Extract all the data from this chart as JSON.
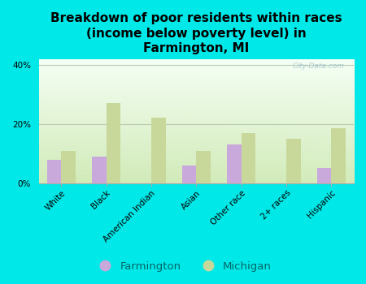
{
  "title": "Breakdown of poor residents within races\n(income below poverty level) in\nFarmington, MI",
  "categories": [
    "White",
    "Black",
    "American Indian",
    "Asian",
    "Other race",
    "2+ races",
    "Hispanic"
  ],
  "farmington_values": [
    8.0,
    9.0,
    0.0,
    6.0,
    13.0,
    0.0,
    5.0
  ],
  "michigan_values": [
    11.0,
    27.0,
    22.0,
    11.0,
    17.0,
    15.0,
    18.5
  ],
  "farmington_color": "#c9a8dc",
  "michigan_color": "#c8d89a",
  "background_outer": "#00e8e8",
  "background_inner_left": "#d8ecc0",
  "background_inner_right": "#f8fef4",
  "background_inner_top": "#fafffe",
  "background_inner_bottom": "#cce8b0",
  "ylim": [
    0,
    42
  ],
  "yticks": [
    0,
    20,
    40
  ],
  "ytick_labels": [
    "0%",
    "20%",
    "40%"
  ],
  "watermark": "City-Data.com",
  "legend_farmington": "Farmington",
  "legend_michigan": "Michigan",
  "bar_width": 0.32,
  "title_fontsize": 11.0,
  "tick_fontsize": 7.5,
  "legend_fontsize": 9.5,
  "grid_color": "#b8ccb0",
  "spine_color": "#aaaaaa"
}
